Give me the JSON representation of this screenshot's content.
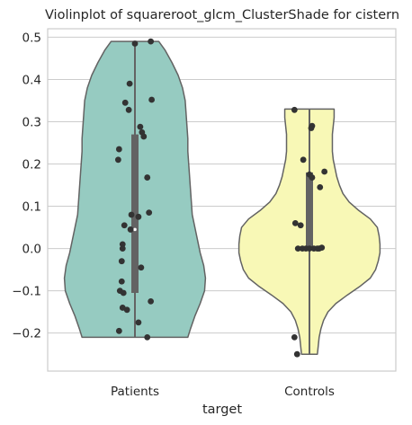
{
  "chart_data": {
    "type": "violin",
    "title": "Violinplot of squareroot_glcm_ClusterShade for cistern",
    "xlabel": "target",
    "ylabel": "",
    "categories": [
      "Patients",
      "Controls"
    ],
    "ylim": [
      -0.29,
      0.52
    ],
    "yticks": [
      -0.2,
      -0.1,
      0.0,
      0.1,
      0.2,
      0.3,
      0.4,
      0.5
    ],
    "ytick_labels": [
      "−0.2",
      "−0.1",
      "0.0",
      "0.1",
      "0.2",
      "0.3",
      "0.4",
      "0.5"
    ],
    "grid": true,
    "colors": {
      "Patients": "#96cbc1",
      "Controls": "#f8f8b6",
      "outline": "#636363",
      "points": "#333333",
      "grid": "#cccccc"
    },
    "violins": [
      {
        "category": "Patients",
        "min": -0.21,
        "max": 0.49,
        "q1": -0.105,
        "median": 0.045,
        "q3": 0.27,
        "profile": [
          [
            -0.21,
            0.6
          ],
          [
            -0.19,
            0.63
          ],
          [
            -0.16,
            0.68
          ],
          [
            -0.13,
            0.74
          ],
          [
            -0.1,
            0.79
          ],
          [
            -0.07,
            0.8
          ],
          [
            -0.04,
            0.78
          ],
          [
            -0.01,
            0.74
          ],
          [
            0.02,
            0.71
          ],
          [
            0.05,
            0.68
          ],
          [
            0.08,
            0.65
          ],
          [
            0.11,
            0.64
          ],
          [
            0.14,
            0.63
          ],
          [
            0.17,
            0.62
          ],
          [
            0.2,
            0.61
          ],
          [
            0.23,
            0.6
          ],
          [
            0.26,
            0.6
          ],
          [
            0.29,
            0.59
          ],
          [
            0.32,
            0.58
          ],
          [
            0.35,
            0.57
          ],
          [
            0.38,
            0.54
          ],
          [
            0.41,
            0.49
          ],
          [
            0.44,
            0.42
          ],
          [
            0.47,
            0.34
          ],
          [
            0.49,
            0.27
          ]
        ],
        "points": [
          [
            0.49,
            0.18
          ],
          [
            0.485,
            0.0
          ],
          [
            0.39,
            -0.06
          ],
          [
            0.352,
            0.19
          ],
          [
            0.345,
            -0.11
          ],
          [
            0.328,
            -0.07
          ],
          [
            0.288,
            0.06
          ],
          [
            0.275,
            0.08
          ],
          [
            0.265,
            0.1
          ],
          [
            0.235,
            -0.18
          ],
          [
            0.21,
            -0.19
          ],
          [
            0.168,
            0.14
          ],
          [
            0.085,
            0.16
          ],
          [
            0.08,
            -0.04
          ],
          [
            0.075,
            0.04
          ],
          [
            0.055,
            -0.12
          ],
          [
            0.045,
            -0.05
          ],
          [
            0.01,
            -0.14
          ],
          [
            0.0,
            -0.14
          ],
          [
            -0.03,
            -0.15
          ],
          [
            -0.045,
            0.07
          ],
          [
            -0.078,
            -0.15
          ],
          [
            -0.1,
            -0.17
          ],
          [
            -0.105,
            -0.13
          ],
          [
            -0.125,
            0.18
          ],
          [
            -0.14,
            -0.14
          ],
          [
            -0.145,
            -0.09
          ],
          [
            -0.175,
            0.04
          ],
          [
            -0.195,
            -0.18
          ],
          [
            -0.21,
            0.14
          ]
        ]
      },
      {
        "category": "Controls",
        "min": -0.25,
        "max": 0.33,
        "q1": 0.0,
        "median": 0.0,
        "q3": 0.18,
        "profile": [
          [
            -0.25,
            0.09
          ],
          [
            -0.23,
            0.1
          ],
          [
            -0.21,
            0.11
          ],
          [
            -0.19,
            0.13
          ],
          [
            -0.17,
            0.16
          ],
          [
            -0.15,
            0.21
          ],
          [
            -0.13,
            0.3
          ],
          [
            -0.11,
            0.43
          ],
          [
            -0.09,
            0.57
          ],
          [
            -0.07,
            0.69
          ],
          [
            -0.05,
            0.75
          ],
          [
            -0.03,
            0.78
          ],
          [
            -0.01,
            0.8
          ],
          [
            0.01,
            0.8
          ],
          [
            0.03,
            0.79
          ],
          [
            0.05,
            0.77
          ],
          [
            0.07,
            0.69
          ],
          [
            0.09,
            0.56
          ],
          [
            0.11,
            0.45
          ],
          [
            0.13,
            0.38
          ],
          [
            0.15,
            0.34
          ],
          [
            0.17,
            0.31
          ],
          [
            0.19,
            0.29
          ],
          [
            0.21,
            0.27
          ],
          [
            0.23,
            0.26
          ],
          [
            0.25,
            0.26
          ],
          [
            0.27,
            0.26
          ],
          [
            0.29,
            0.27
          ],
          [
            0.31,
            0.28
          ],
          [
            0.33,
            0.28
          ]
        ],
        "points": [
          [
            0.328,
            -0.17
          ],
          [
            0.29,
            0.03
          ],
          [
            0.285,
            0.02
          ],
          [
            0.21,
            -0.07
          ],
          [
            0.182,
            0.17
          ],
          [
            0.175,
            0.0
          ],
          [
            0.168,
            0.03
          ],
          [
            0.145,
            0.12
          ],
          [
            0.06,
            -0.16
          ],
          [
            0.055,
            -0.1
          ],
          [
            0.0,
            -0.13
          ],
          [
            0.0,
            -0.08
          ],
          [
            0.0,
            -0.04
          ],
          [
            0.0,
            0.0
          ],
          [
            0.0,
            0.05
          ],
          [
            0.0,
            0.09
          ],
          [
            0.0,
            0.11
          ],
          [
            0.002,
            0.14
          ],
          [
            -0.21,
            -0.17
          ],
          [
            -0.25,
            -0.14
          ]
        ]
      }
    ]
  }
}
